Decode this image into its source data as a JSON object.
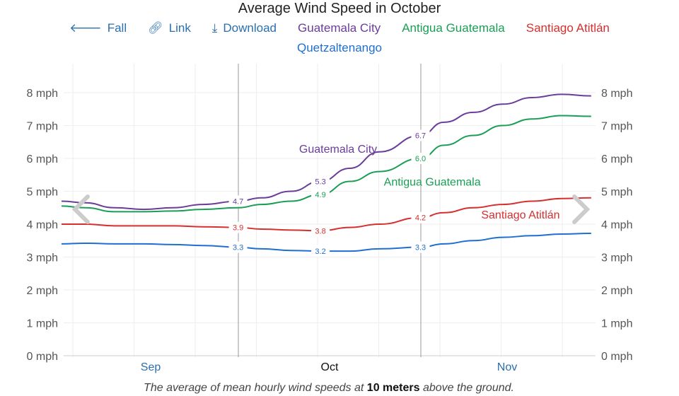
{
  "chart_data": {
    "type": "line",
    "title": "Average Wind Speed in October",
    "x": [
      "Sep 1",
      "Sep 5",
      "Sep 10",
      "Sep 15",
      "Sep 20",
      "Sep 25",
      "Oct 1",
      "Oct 5",
      "Oct 10",
      "Oct 15",
      "Oct 20",
      "Oct 25",
      "Nov 1",
      "Nov 5",
      "Nov 10",
      "Nov 15",
      "Nov 20",
      "Nov 25",
      "Nov 30"
    ],
    "x_tick_labels": [
      "Sep",
      "Oct",
      "Nov"
    ],
    "y_tick_labels": [
      "0 mph",
      "1 mph",
      "2 mph",
      "3 mph",
      "4 mph",
      "5 mph",
      "6 mph",
      "7 mph",
      "8 mph"
    ],
    "ylim": [
      0,
      8
    ],
    "unit": "mph",
    "grid": true,
    "legend": "top",
    "series": [
      {
        "name": "Guatemala City",
        "color": "#6a3d9a",
        "values": [
          4.7,
          4.65,
          4.5,
          4.45,
          4.5,
          4.6,
          4.7,
          4.8,
          5.0,
          5.3,
          5.7,
          6.2,
          6.7,
          7.1,
          7.4,
          7.65,
          7.85,
          7.95,
          7.9
        ],
        "labels": {
          "6": "4.7",
          "9": "5.3",
          "12": "6.7"
        },
        "annotation": {
          "x": "Oct 18",
          "y": 6.3
        }
      },
      {
        "name": "Antigua Guatemala",
        "color": "#1a9e55",
        "values": [
          4.55,
          4.5,
          4.38,
          4.38,
          4.4,
          4.45,
          4.5,
          4.6,
          4.7,
          4.9,
          5.3,
          5.6,
          6.0,
          6.4,
          6.7,
          7.0,
          7.2,
          7.3,
          7.28
        ],
        "labels": {
          "9": "4.9",
          "12": "6.0"
        },
        "annotation": {
          "x": "Nov 3",
          "y": 5.3
        }
      },
      {
        "name": "Santiago Atitlán",
        "color": "#d62f2f",
        "values": [
          4.0,
          4.0,
          3.95,
          3.95,
          3.95,
          3.92,
          3.9,
          3.85,
          3.82,
          3.8,
          3.9,
          4.0,
          4.2,
          4.35,
          4.5,
          4.6,
          4.7,
          4.78,
          4.8
        ],
        "labels": {
          "6": "3.9",
          "9": "3.8",
          "12": "4.2"
        },
        "annotation": {
          "x": "Nov 18",
          "y": 4.3
        }
      },
      {
        "name": "Quetzaltenango",
        "color": "#1f6fd0",
        "values": [
          3.4,
          3.42,
          3.4,
          3.4,
          3.38,
          3.35,
          3.3,
          3.25,
          3.2,
          3.18,
          3.18,
          3.25,
          3.3,
          3.4,
          3.5,
          3.6,
          3.65,
          3.7,
          3.72
        ],
        "labels": {
          "6": "3.3",
          "9": "3.2",
          "12": "3.3"
        }
      }
    ]
  },
  "toolbar": {
    "fall": "Fall",
    "link": "Link",
    "download": "Download"
  },
  "caption": {
    "pre": "The average of mean hourly wind speeds at ",
    "bold": "10 meters",
    "post": " above the ground."
  }
}
